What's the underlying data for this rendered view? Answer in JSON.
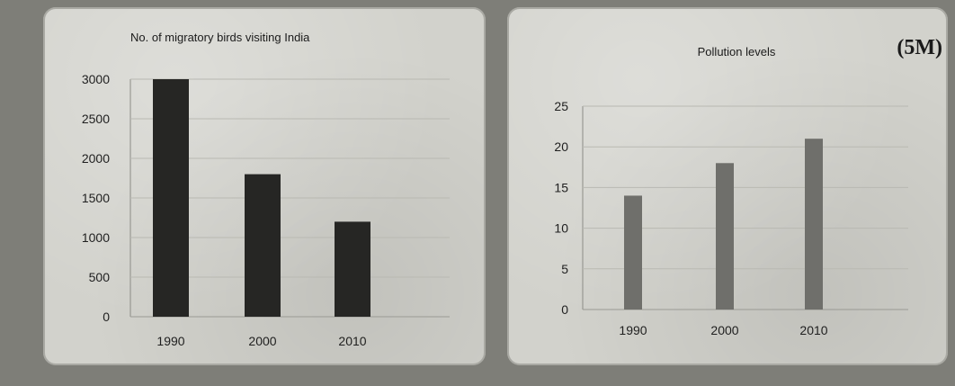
{
  "marks_label": "(5M)",
  "chart_data": [
    {
      "type": "bar",
      "title": "No. of migratory birds visiting India",
      "categories": [
        "1990",
        "2000",
        "2010"
      ],
      "values": [
        3000,
        1800,
        1200
      ],
      "ylim": [
        0,
        3000
      ],
      "yticks": [
        "0",
        "500",
        "1000",
        "1500",
        "2000",
        "2500",
        "3000"
      ],
      "grid": true,
      "bar_color": "#262624"
    },
    {
      "type": "bar",
      "title": "Pollution levels",
      "categories": [
        "1990",
        "2000",
        "2010"
      ],
      "values": [
        14,
        18,
        21
      ],
      "ylim": [
        0,
        25
      ],
      "yticks": [
        "0",
        "5",
        "10",
        "15",
        "20",
        "25"
      ],
      "grid": true,
      "bar_color": "#6f6f6b"
    }
  ]
}
